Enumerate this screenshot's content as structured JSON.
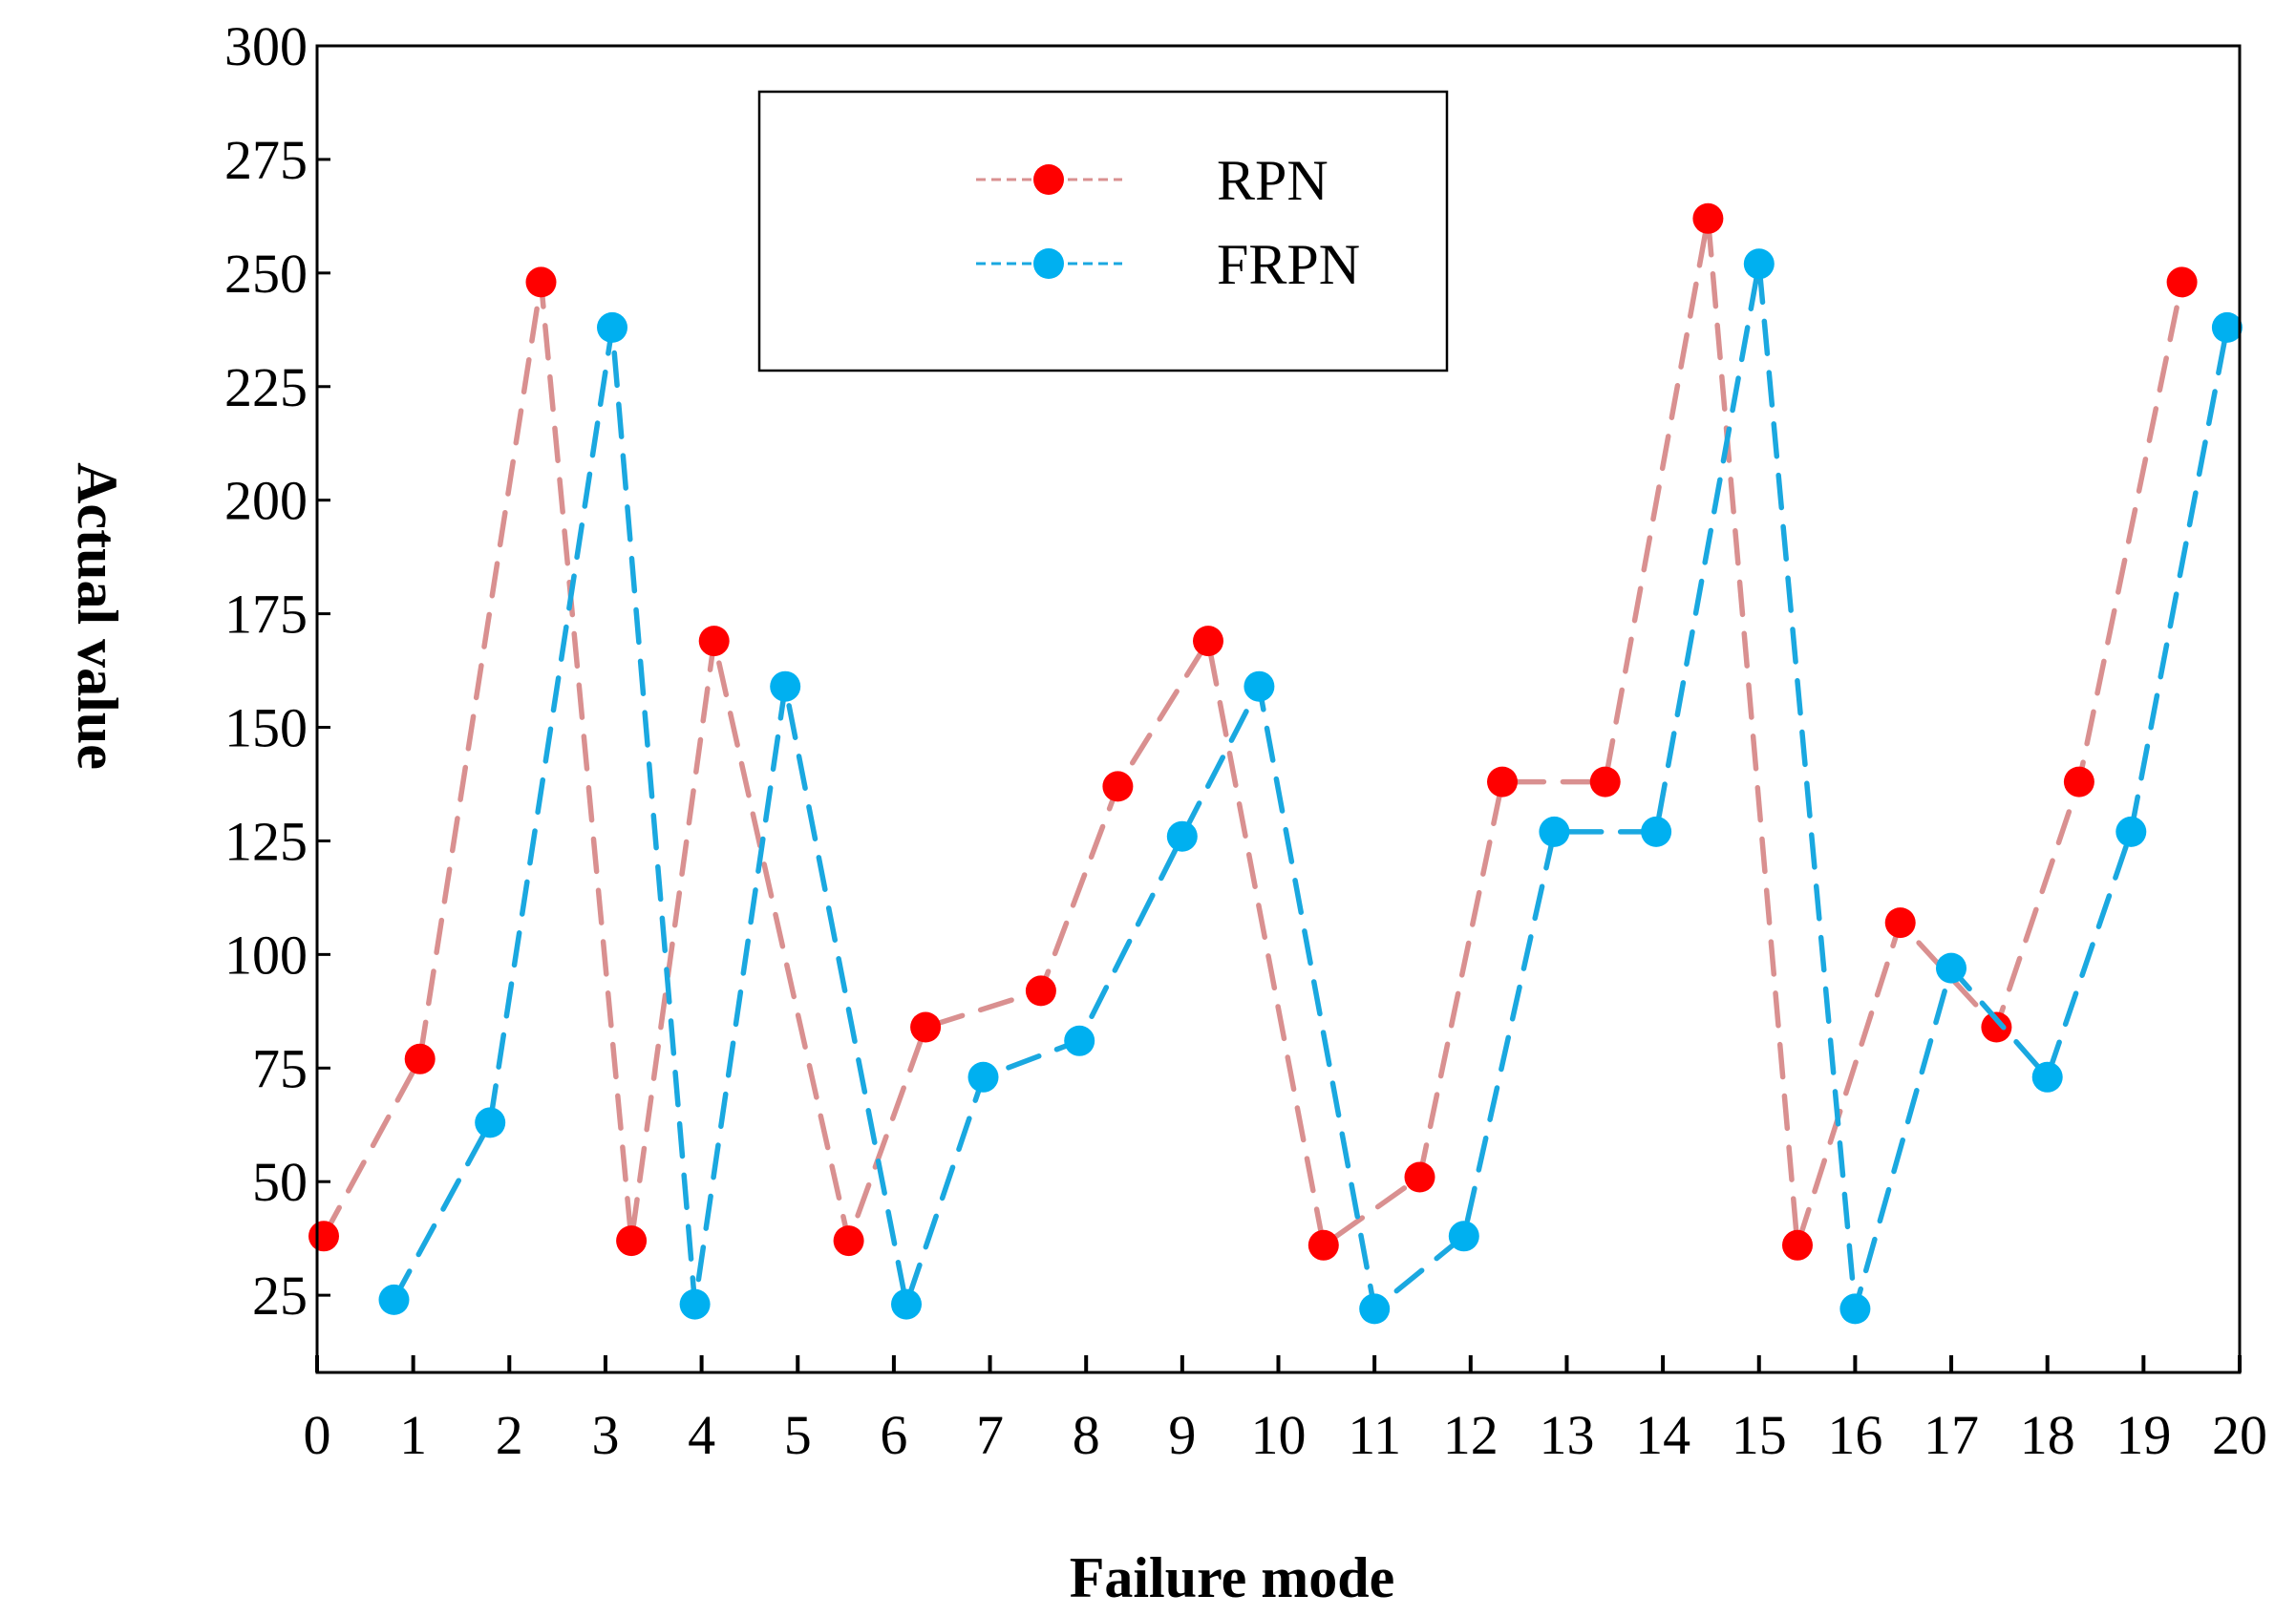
{
  "chart_data": {
    "type": "line",
    "title": "",
    "xlabel": "Failure mode",
    "ylabel": "Actual value",
    "xlim": [
      0,
      20
    ],
    "ylim": [
      8,
      300
    ],
    "x_ticks": [
      0,
      1,
      2,
      3,
      4,
      5,
      6,
      7,
      8,
      9,
      10,
      11,
      12,
      13,
      14,
      15,
      16,
      17,
      18,
      19,
      20
    ],
    "y_ticks": [
      25,
      50,
      75,
      100,
      125,
      150,
      175,
      200,
      225,
      250,
      275,
      300
    ],
    "grid": false,
    "legend_position": "top-center",
    "series": [
      {
        "name": "RPN",
        "marker_color": "#ff0000",
        "line_color": "#d99090",
        "x": [
          0.07,
          1.07,
          2.33,
          3.27,
          4.13,
          5.53,
          6.33,
          7.53,
          8.33,
          9.27,
          10.47,
          11.47,
          12.33,
          13.4,
          14.47,
          15.4,
          16.47,
          17.47,
          18.33,
          19.4
        ],
        "y": [
          38,
          77,
          248,
          37,
          169,
          37,
          84,
          92,
          137,
          169,
          36,
          51,
          138,
          138,
          262,
          36,
          107,
          84,
          138,
          248
        ]
      },
      {
        "name": "FRPN",
        "marker_color": "#00b0f0",
        "line_color": "#1aa8e0",
        "x": [
          0.8,
          1.8,
          3.07,
          3.93,
          4.87,
          6.13,
          6.93,
          7.93,
          9.0,
          9.8,
          11.0,
          11.93,
          12.87,
          13.93,
          15.0,
          16.0,
          17.0,
          18.0,
          18.87,
          19.87
        ],
        "y": [
          24,
          63,
          238,
          23,
          159,
          23,
          73,
          81,
          126,
          159,
          22,
          38,
          127,
          127,
          252,
          22,
          97,
          73,
          127,
          238
        ]
      }
    ]
  }
}
